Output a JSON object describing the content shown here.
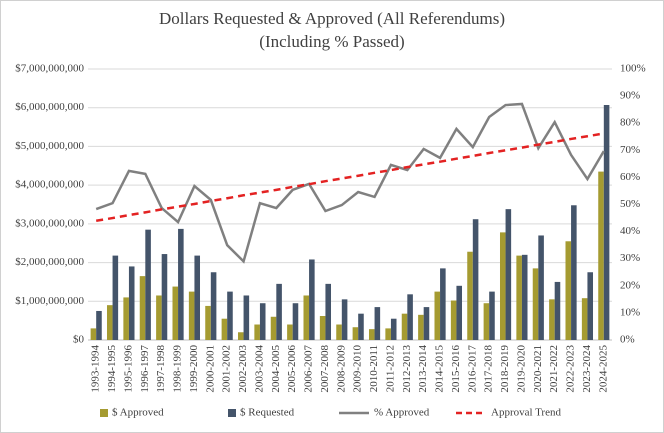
{
  "chart_data": {
    "type": "bar",
    "title": "Dollars Requested & Approved (All Referendums)",
    "subtitle": "(Including % Passed)",
    "categories": [
      "1993-1994",
      "1994-1995",
      "1995-1996",
      "1996-1997",
      "1997-1998",
      "1998-1999",
      "1999-2000",
      "2000-2001",
      "2001-2002",
      "2002-2003",
      "2003-2004",
      "2004-2005",
      "2005-2006",
      "2006-2007",
      "2007-2008",
      "2008-2009",
      "2009-2010",
      "2010-2011",
      "2011-2012",
      "2012-2013",
      "2013-2014",
      "2014-2015",
      "2015-2016",
      "2016-2017",
      "2017-2018",
      "2018-2019",
      "2019-2020",
      "2020-2021",
      "2021-2022",
      "2022-2023",
      "2023-2024",
      "2024-2025"
    ],
    "series": [
      {
        "name": "$ Approved",
        "type": "bar",
        "color": "#a59b31",
        "values": [
          300000000,
          900000000,
          1100000000,
          1650000000,
          1150000000,
          1380000000,
          1250000000,
          880000000,
          550000000,
          200000000,
          400000000,
          600000000,
          400000000,
          1150000000,
          620000000,
          400000000,
          330000000,
          280000000,
          300000000,
          680000000,
          650000000,
          1250000000,
          1020000000,
          2280000000,
          950000000,
          2780000000,
          2180000000,
          1850000000,
          1050000000,
          2550000000,
          1080000000,
          4350000000
        ]
      },
      {
        "name": "$ Requested",
        "type": "bar",
        "color": "#44546a",
        "values": [
          750000000,
          2180000000,
          1900000000,
          2850000000,
          2220000000,
          2870000000,
          2180000000,
          1750000000,
          1250000000,
          1150000000,
          950000000,
          1450000000,
          950000000,
          2080000000,
          1450000000,
          1050000000,
          680000000,
          850000000,
          550000000,
          1180000000,
          850000000,
          1850000000,
          1400000000,
          3120000000,
          1250000000,
          3380000000,
          2200000000,
          2700000000,
          1500000000,
          3480000000,
          1750000000,
          6070000000
        ]
      },
      {
        "name": "% Approved",
        "type": "line",
        "axis": "y2",
        "color": "#808080",
        "values": [
          48.3,
          50.5,
          62.4,
          61.3,
          48.7,
          43.5,
          56.8,
          51.7,
          35,
          29,
          50.5,
          48.7,
          55.4,
          57.6,
          47.6,
          49.8,
          54.6,
          52.8,
          64.6,
          62.7,
          70.5,
          67.2,
          77.9,
          71.2,
          82.3,
          86.7,
          87.1,
          70.8,
          80.4,
          68.3,
          59.4,
          69.7
        ]
      },
      {
        "name": "Approval Trend",
        "type": "line",
        "axis": "y2",
        "dashed": true,
        "color": "#e32222",
        "values": [
          44.0,
          45.0,
          46.1,
          47.1,
          48.2,
          49.2,
          50.2,
          51.3,
          52.3,
          53.4,
          54.4,
          55.4,
          56.5,
          57.5,
          58.6,
          59.6,
          60.6,
          61.7,
          62.7,
          63.8,
          64.8,
          65.8,
          66.9,
          67.9,
          69.0,
          70.0,
          71.0,
          72.1,
          73.1,
          74.2,
          75.2,
          76.2
        ]
      }
    ],
    "ylim": [
      0,
      7000000000
    ],
    "yticks": [
      {
        "value": 0,
        "label": "$0"
      },
      {
        "value": 1000000000,
        "label": "$1,000,000,000"
      },
      {
        "value": 2000000000,
        "label": "$2,000,000,000"
      },
      {
        "value": 3000000000,
        "label": "$3,000,000,000"
      },
      {
        "value": 4000000000,
        "label": "$4,000,000,000"
      },
      {
        "value": 5000000000,
        "label": "$5,000,000,000"
      },
      {
        "value": 6000000000,
        "label": "$6,000,000,000"
      },
      {
        "value": 7000000000,
        "label": "$7,000,000,000"
      }
    ],
    "y2lim": [
      0,
      100
    ],
    "y2ticks": [
      {
        "value": 0,
        "label": "0%"
      },
      {
        "value": 10,
        "label": "10%"
      },
      {
        "value": 20,
        "label": "20%"
      },
      {
        "value": 30,
        "label": "30%"
      },
      {
        "value": 40,
        "label": "40%"
      },
      {
        "value": 50,
        "label": "50%"
      },
      {
        "value": 60,
        "label": "60%"
      },
      {
        "value": 70,
        "label": "70%"
      },
      {
        "value": 80,
        "label": "80%"
      },
      {
        "value": 90,
        "label": "90%"
      },
      {
        "value": 100,
        "label": "100%"
      }
    ],
    "grid": true,
    "legend": "bottom"
  }
}
